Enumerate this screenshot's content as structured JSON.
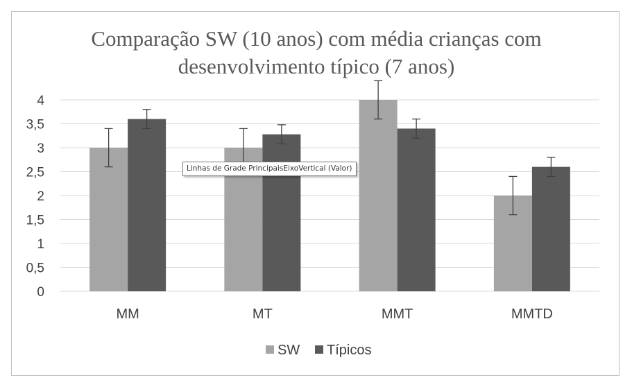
{
  "chart_data": {
    "type": "bar",
    "title_lines": [
      "Comparação SW (10 anos) com média crianças com",
      "desenvolvimento típico (7 anos)"
    ],
    "categories": [
      "MM",
      "MT",
      "MMT",
      "MMTD"
    ],
    "series": [
      {
        "name": "SW",
        "color": "#a5a5a5",
        "values": [
          3.0,
          3.0,
          4.0,
          2.0
        ],
        "error": [
          0.4,
          0.4,
          0.4,
          0.4
        ]
      },
      {
        "name": "Típicos",
        "color": "#595959",
        "values": [
          3.6,
          3.28,
          3.4,
          2.6
        ],
        "error": [
          0.2,
          0.2,
          0.2,
          0.2
        ]
      }
    ],
    "ylim": [
      0,
      4
    ],
    "yticks": [
      0,
      0.5,
      1,
      1.5,
      2,
      2.5,
      3,
      3.5,
      4
    ],
    "ytick_labels": [
      "0",
      "0,5",
      "1",
      "1,5",
      "2",
      "2,5",
      "3",
      "3,5",
      "4"
    ],
    "grid": true,
    "legend_position": "bottom"
  },
  "tooltip": {
    "text": "Linhas de Grade PrincipaisEixoVertical (Valor)"
  }
}
